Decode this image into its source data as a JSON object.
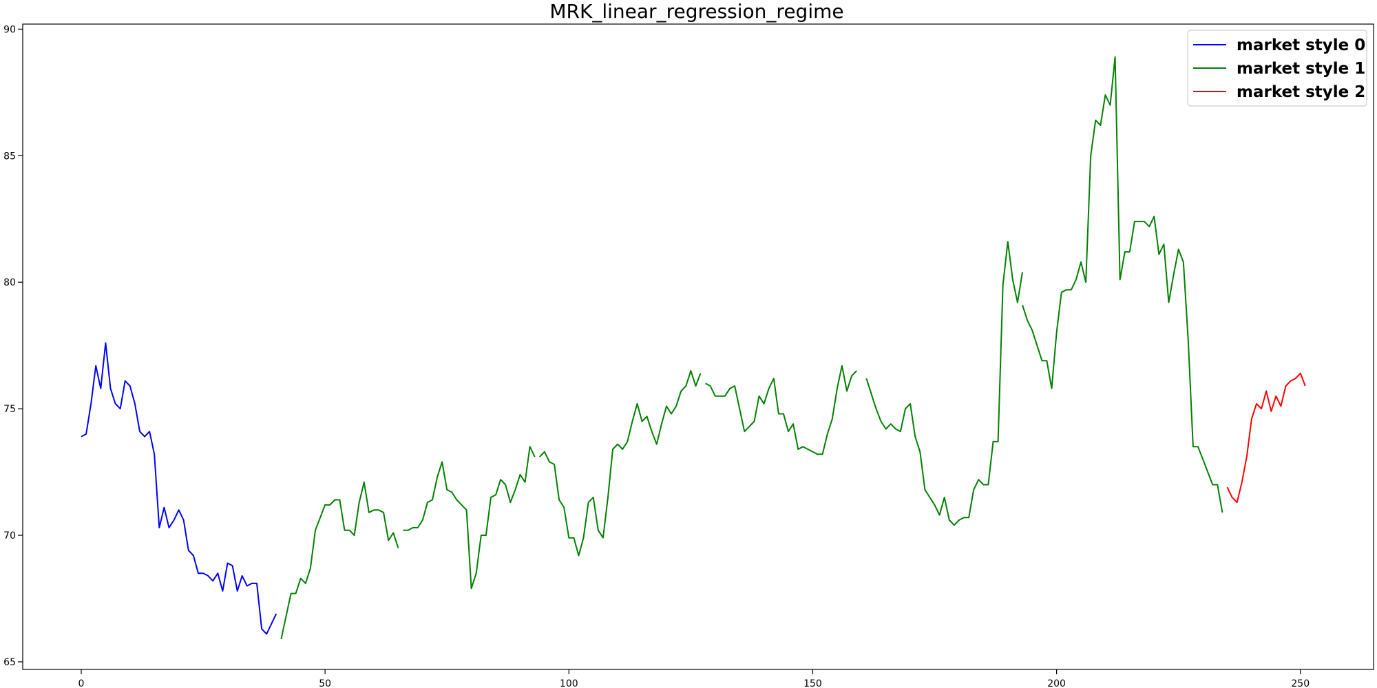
{
  "chart_data": {
    "type": "line",
    "title": "MRK_linear_regression_regime",
    "xlabel": "",
    "ylabel": "",
    "xlim": [
      -12,
      265
    ],
    "ylim": [
      64.7,
      90.2
    ],
    "x_ticks": [
      0,
      50,
      100,
      150,
      200,
      250
    ],
    "y_ticks": [
      65,
      70,
      75,
      80,
      85,
      90
    ],
    "grid": false,
    "legend_position": "top-right",
    "legend": [
      {
        "label": "market style 0",
        "color": "#0000ff"
      },
      {
        "label": "market style 1",
        "color": "#008000"
      },
      {
        "label": "market style 2",
        "color": "#ff0000"
      }
    ],
    "segments": [
      {
        "style": 0,
        "x_start": 0,
        "y": [
          73.9,
          74.0,
          75.2,
          76.7,
          75.8,
          77.6,
          75.8,
          75.2,
          75.0,
          76.1,
          75.9,
          75.2,
          74.1,
          73.9,
          74.1,
          73.2,
          70.3,
          71.1,
          70.3,
          70.6,
          71.0,
          70.6,
          69.4,
          69.2,
          68.5,
          68.5,
          68.4,
          68.2,
          68.5,
          67.8,
          68.9,
          68.8,
          67.8,
          68.4,
          68.0,
          68.1,
          68.1,
          66.3,
          66.1,
          66.5,
          66.9
        ]
      },
      {
        "style": 1,
        "x_start": 41,
        "y": [
          65.9,
          66.8,
          67.7,
          67.7,
          68.3,
          68.1,
          68.7,
          70.2,
          70.7,
          71.2,
          71.2,
          71.4,
          71.4,
          70.2,
          70.2,
          70.0,
          71.3,
          72.1,
          70.9,
          71.0,
          71.0,
          70.9,
          69.8,
          70.1,
          69.5
        ]
      },
      {
        "style": 1,
        "x_start": 66,
        "y": [
          70.2,
          70.2,
          70.3,
          70.3,
          70.6,
          71.3,
          71.4,
          72.3,
          72.9,
          71.8,
          71.7,
          71.4,
          71.2,
          71.0,
          67.9,
          68.5,
          70.0,
          70.0,
          71.5,
          71.6,
          72.2,
          72.0,
          71.3,
          71.8,
          72.4,
          72.1,
          73.5,
          73.1
        ]
      },
      {
        "style": 1,
        "x_start": 94,
        "y": [
          73.1,
          73.3,
          72.9,
          72.8,
          71.4,
          71.1,
          69.9,
          69.9,
          69.2,
          69.9,
          71.3,
          71.5,
          70.2,
          69.9,
          71.5,
          73.4,
          73.6,
          73.4,
          73.7,
          74.5,
          75.2,
          74.5,
          74.7,
          74.1,
          73.6,
          74.4,
          75.1,
          74.8,
          75.1,
          75.7,
          75.9,
          76.5,
          75.9,
          76.4
        ]
      },
      {
        "style": 1,
        "x_start": 128,
        "y": [
          76.0,
          75.9,
          75.5,
          75.5,
          75.5,
          75.8,
          75.9,
          75.0,
          74.1,
          74.3,
          74.5,
          75.5,
          75.2,
          75.8,
          76.2,
          74.8,
          74.8,
          74.1,
          74.4,
          73.4,
          73.5,
          73.4,
          73.3,
          73.2,
          73.2,
          74.0,
          74.6,
          75.8,
          76.7,
          75.7,
          76.3,
          76.5
        ]
      },
      {
        "style": 1,
        "x_start": 161,
        "y": [
          76.2,
          75.6,
          75.0,
          74.5,
          74.2,
          74.4,
          74.2,
          74.1,
          75.0,
          75.2,
          73.9,
          73.3,
          71.8,
          71.5,
          71.2,
          70.8,
          71.5,
          70.6,
          70.4,
          70.6,
          70.7,
          70.7,
          71.8,
          72.2,
          72.0,
          72.0,
          73.7,
          73.7,
          79.9,
          81.6,
          80.1,
          79.2,
          80.4
        ]
      },
      {
        "style": 1,
        "x_start": 193,
        "y": [
          79.1,
          78.5,
          78.1,
          77.5,
          76.9,
          76.9,
          75.8,
          78.0,
          79.6,
          79.7,
          79.7,
          80.1,
          80.8,
          80.0,
          85.0,
          86.4,
          86.2,
          87.4,
          87.0,
          88.9,
          80.1,
          81.2,
          81.2,
          82.4,
          82.4,
          82.4,
          82.2,
          82.6,
          81.1,
          81.5,
          79.2,
          80.3,
          81.3,
          80.8,
          77.7,
          73.5,
          73.5,
          73.0,
          72.5,
          72.0,
          72.0,
          70.9
        ]
      },
      {
        "style": 2,
        "x_start": 235,
        "y": [
          71.9,
          71.5,
          71.3,
          72.1,
          73.1,
          74.6,
          75.2,
          75.0,
          75.7,
          74.9,
          75.5,
          75.1,
          75.9,
          76.1,
          76.2,
          76.4,
          75.9
        ]
      }
    ]
  }
}
